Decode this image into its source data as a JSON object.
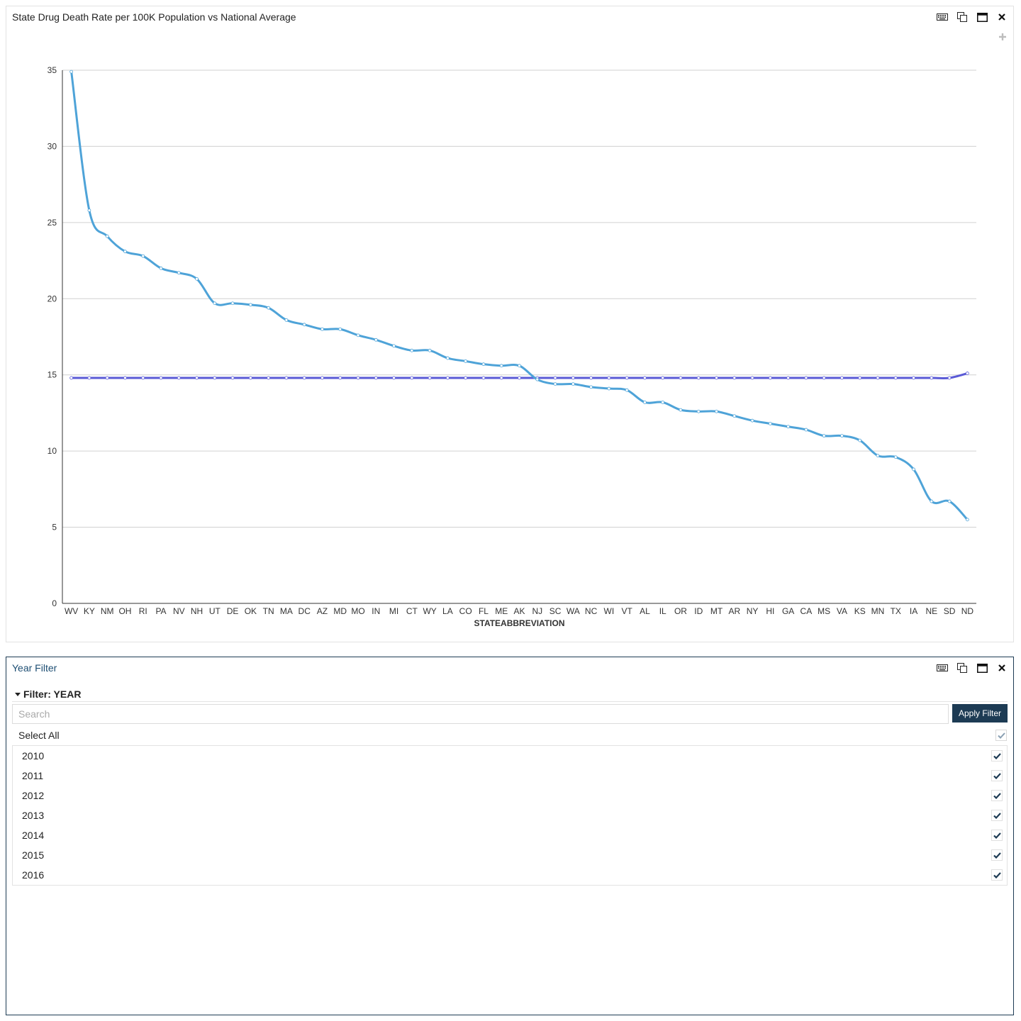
{
  "chart_panel": {
    "title": "State Drug Death Rate per 100K Population vs National Average",
    "tools": [
      "keyboard-icon",
      "duplicate-icon",
      "maximize-icon",
      "close-icon"
    ]
  },
  "chart_data": {
    "type": "line",
    "title": "State Drug Death Rate per 100K Population vs National Average",
    "xlabel": "STATEABBREVIATION",
    "ylabel": "",
    "ylim": [
      0,
      35
    ],
    "yticks": [
      0,
      5,
      10,
      15,
      20,
      25,
      30,
      35
    ],
    "grid": true,
    "categories": [
      "WV",
      "KY",
      "NM",
      "OH",
      "RI",
      "PA",
      "NV",
      "NH",
      "UT",
      "DE",
      "OK",
      "TN",
      "MA",
      "DC",
      "AZ",
      "MD",
      "MO",
      "IN",
      "MI",
      "CT",
      "WY",
      "LA",
      "CO",
      "FL",
      "ME",
      "AK",
      "NJ",
      "SC",
      "WA",
      "NC",
      "WI",
      "VT",
      "AL",
      "IL",
      "OR",
      "ID",
      "MT",
      "AR",
      "NY",
      "HI",
      "GA",
      "CA",
      "MS",
      "VA",
      "KS",
      "MN",
      "TX",
      "IA",
      "NE",
      "SD",
      "ND"
    ],
    "series": [
      {
        "color": "#4ea3d8",
        "values": [
          34.9,
          25.8,
          24.1,
          23.1,
          22.8,
          22.0,
          21.7,
          21.3,
          19.7,
          19.7,
          19.6,
          19.4,
          18.6,
          18.3,
          18.0,
          18.0,
          17.6,
          17.3,
          16.9,
          16.6,
          16.6,
          16.1,
          15.9,
          15.7,
          15.6,
          15.6,
          14.7,
          14.4,
          14.4,
          14.2,
          14.1,
          14.0,
          13.2,
          13.2,
          12.7,
          12.6,
          12.6,
          12.3,
          12.0,
          11.8,
          11.6,
          11.4,
          11.0,
          11.0,
          10.7,
          9.7,
          9.6,
          8.8,
          6.7,
          6.7,
          5.5
        ]
      },
      {
        "color": "#5a5ad6",
        "values": [
          14.8,
          14.8,
          14.8,
          14.8,
          14.8,
          14.8,
          14.8,
          14.8,
          14.8,
          14.8,
          14.8,
          14.8,
          14.8,
          14.8,
          14.8,
          14.8,
          14.8,
          14.8,
          14.8,
          14.8,
          14.8,
          14.8,
          14.8,
          14.8,
          14.8,
          14.8,
          14.8,
          14.8,
          14.8,
          14.8,
          14.8,
          14.8,
          14.8,
          14.8,
          14.8,
          14.8,
          14.8,
          14.8,
          14.8,
          14.8,
          14.8,
          14.8,
          14.8,
          14.8,
          14.8,
          14.8,
          14.8,
          14.8,
          14.8,
          14.8,
          15.1
        ]
      }
    ]
  },
  "filter_panel": {
    "title": "Year Filter",
    "tools": [
      "keyboard-icon",
      "duplicate-icon",
      "maximize-icon",
      "close-icon"
    ],
    "filter_label": "Filter: YEAR",
    "search_placeholder": "Search",
    "apply_label": "Apply Filter",
    "select_all_label": "Select All",
    "years": [
      {
        "label": "2010",
        "checked": true
      },
      {
        "label": "2011",
        "checked": true
      },
      {
        "label": "2012",
        "checked": true
      },
      {
        "label": "2013",
        "checked": true
      },
      {
        "label": "2014",
        "checked": true
      },
      {
        "label": "2015",
        "checked": true
      },
      {
        "label": "2016",
        "checked": true
      }
    ]
  }
}
